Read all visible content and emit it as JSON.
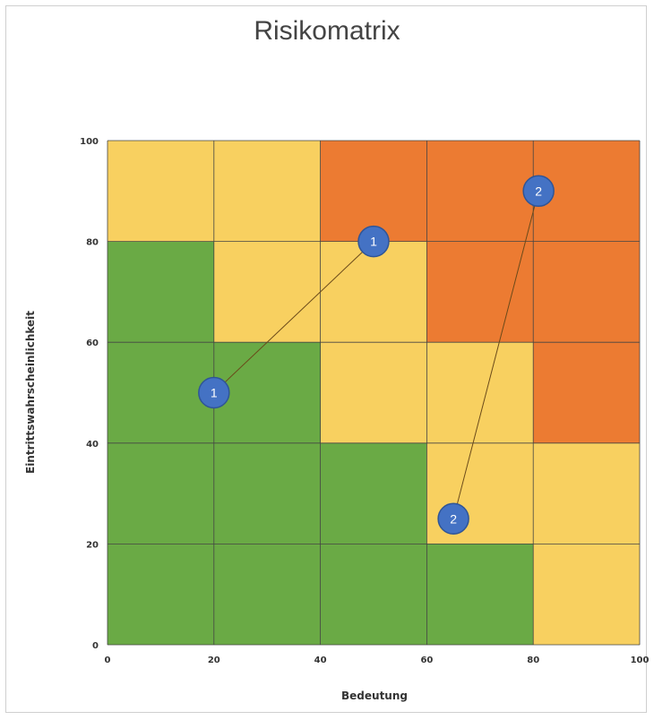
{
  "chart_data": {
    "type": "scatter",
    "title": "Risikomatrix",
    "xlabel": "Bedeutung",
    "ylabel": "Eintrittswahrscheinlichkeit",
    "xlim": [
      0,
      100
    ],
    "ylim": [
      0,
      100
    ],
    "x_ticks": [
      0,
      20,
      40,
      60,
      80,
      100
    ],
    "y_ticks": [
      0,
      20,
      40,
      60,
      80,
      100
    ],
    "grid": true,
    "colors": {
      "low": "#6aaa45",
      "medium": "#f8d060",
      "high": "#ec7b32",
      "marker": "#4472c4",
      "grid": "#444444"
    },
    "cell_size": [
      20,
      20
    ],
    "zones": [
      [
        "low",
        "low",
        "low",
        "low",
        "medium"
      ],
      [
        "low",
        "low",
        "low",
        "medium",
        "medium"
      ],
      [
        "low",
        "low",
        "medium",
        "medium",
        "high"
      ],
      [
        "low",
        "medium",
        "medium",
        "high",
        "high"
      ],
      [
        "medium",
        "medium",
        "high",
        "high",
        "high"
      ]
    ],
    "series": [
      {
        "points": [
          {
            "x": 20,
            "y": 50,
            "label": "1"
          },
          {
            "x": 50,
            "y": 80,
            "label": "1"
          }
        ]
      },
      {
        "points": [
          {
            "x": 65,
            "y": 25,
            "label": "2"
          },
          {
            "x": 81,
            "y": 90,
            "label": "2"
          }
        ]
      }
    ]
  }
}
